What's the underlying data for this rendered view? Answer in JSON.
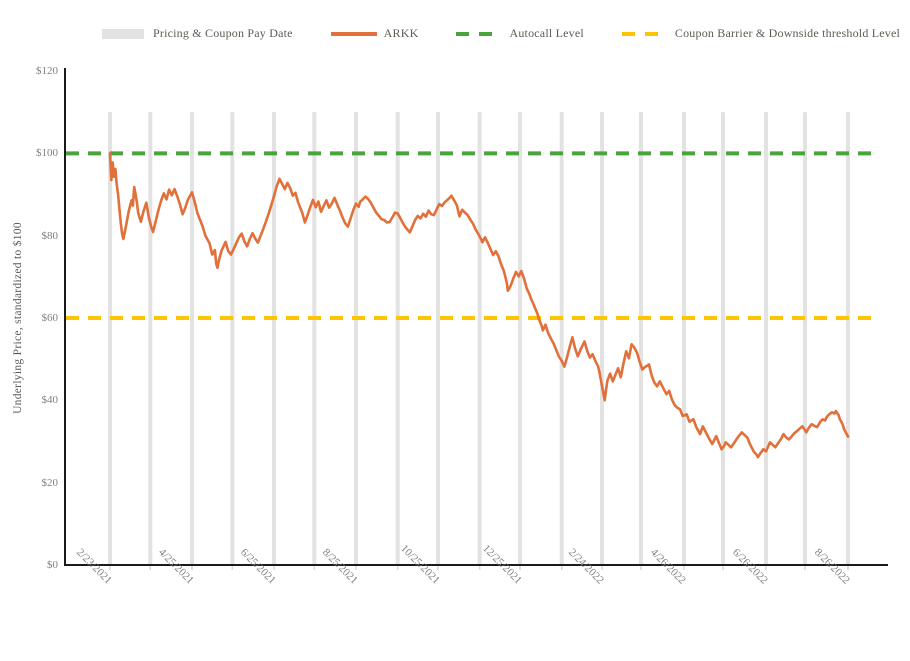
{
  "legend": {
    "items": [
      {
        "label": "Pricing & Coupon Pay Date",
        "swatch": "box",
        "color": "#e2e2e2"
      },
      {
        "label": "ARKK",
        "swatch": "line",
        "color": "#e2703a"
      },
      {
        "label": "Autocall Level",
        "swatch": "dash",
        "color": "#4aa43c"
      },
      {
        "label": "Coupon Barrier & Downside threshold Level",
        "swatch": "dash",
        "color": "#ffc400"
      }
    ]
  },
  "colors": {
    "arkk": "#e2703a",
    "autocall": "#4aa43c",
    "coupon_barrier": "#ffc400",
    "pay_date_bar": "#e2e2e2",
    "axis": "#1a1a1a",
    "tick_text": "#7f7f7a"
  },
  "chart_data": {
    "type": "line",
    "ylabel": "Underlying Price, standardized to $100",
    "ylim": [
      0,
      120
    ],
    "y_ticks": [
      0,
      20,
      40,
      60,
      80,
      100,
      120
    ],
    "y_tick_labels": [
      "$0",
      "$20",
      "$40",
      "$60",
      "$80",
      "$100",
      "$120"
    ],
    "x_domain_days": [
      0,
      549
    ],
    "x_tick_days": [
      0,
      61,
      122,
      183,
      244,
      305,
      366,
      427,
      488,
      549
    ],
    "x_tick_labels": [
      "2/23/2021",
      "4/25/2021",
      "6/25/2021",
      "8/25/2021",
      "10/25/2021",
      "12/25/2021",
      "2/24/2022",
      "4/26/2022",
      "6/26/2022",
      "8/26/2022"
    ],
    "grid": "off",
    "legend_position": "top",
    "autocall_level": 100,
    "coupon_barrier_level": 60,
    "pay_date_bar_top_value": 110,
    "pay_date_bars_days": [
      0,
      30,
      61,
      91,
      122,
      152,
      183,
      214,
      244,
      275,
      305,
      336,
      366,
      395,
      427,
      456,
      488,
      517,
      549
    ],
    "series": [
      {
        "name": "ARKK",
        "points": [
          [
            0,
            100
          ],
          [
            1,
            93.5
          ],
          [
            2,
            97.8
          ],
          [
            3,
            94.3
          ],
          [
            4,
            96.2
          ],
          [
            5,
            92.5
          ],
          [
            6,
            90
          ],
          [
            7,
            86.5
          ],
          [
            8,
            83
          ],
          [
            9,
            80.5
          ],
          [
            10,
            79.2
          ],
          [
            12,
            82.5
          ],
          [
            14,
            86
          ],
          [
            16,
            88.6
          ],
          [
            17,
            87.3
          ],
          [
            18,
            91.8
          ],
          [
            19,
            90.2
          ],
          [
            20,
            88
          ],
          [
            21,
            85.5
          ],
          [
            23,
            83.4
          ],
          [
            25,
            86
          ],
          [
            27,
            88
          ],
          [
            29,
            84.2
          ],
          [
            31,
            81.8
          ],
          [
            32,
            80.9
          ],
          [
            34,
            83.5
          ],
          [
            36,
            86.2
          ],
          [
            38,
            88.5
          ],
          [
            40,
            90.3
          ],
          [
            42,
            88.8
          ],
          [
            44,
            91.2
          ],
          [
            46,
            89.8
          ],
          [
            48,
            91.3
          ],
          [
            50,
            89.6
          ],
          [
            52,
            87.6
          ],
          [
            54,
            85.2
          ],
          [
            56,
            86.8
          ],
          [
            58,
            88.8
          ],
          [
            61,
            90.5
          ],
          [
            63,
            88.2
          ],
          [
            65,
            85.5
          ],
          [
            67,
            83.8
          ],
          [
            69,
            82.1
          ],
          [
            71,
            80
          ],
          [
            74,
            78.2
          ],
          [
            76,
            75.4
          ],
          [
            78,
            76.5
          ],
          [
            79,
            73.2
          ],
          [
            80,
            72.2
          ],
          [
            81,
            74
          ],
          [
            83,
            76.4
          ],
          [
            86,
            78.5
          ],
          [
            88,
            76.2
          ],
          [
            90,
            75.4
          ],
          [
            92,
            76.8
          ],
          [
            94,
            78.2
          ],
          [
            96,
            79.6
          ],
          [
            98,
            80.5
          ],
          [
            100,
            78.6
          ],
          [
            102,
            77.4
          ],
          [
            104,
            79.2
          ],
          [
            106,
            80.6
          ],
          [
            108,
            79.3
          ],
          [
            110,
            78.3
          ],
          [
            112,
            80
          ],
          [
            114,
            81.6
          ],
          [
            116,
            83.4
          ],
          [
            118,
            85.3
          ],
          [
            120,
            87.4
          ],
          [
            122,
            89.6
          ],
          [
            124,
            92
          ],
          [
            126,
            93.8
          ],
          [
            128,
            92.6
          ],
          [
            130,
            91.3
          ],
          [
            132,
            92.8
          ],
          [
            134,
            91.6
          ],
          [
            136,
            89.7
          ],
          [
            138,
            90.4
          ],
          [
            140,
            88
          ],
          [
            143,
            85.6
          ],
          [
            145,
            83.2
          ],
          [
            147,
            85
          ],
          [
            149,
            87
          ],
          [
            151,
            88.7
          ],
          [
            153,
            86.9
          ],
          [
            155,
            88.3
          ],
          [
            157,
            85.8
          ],
          [
            159,
            87.2
          ],
          [
            161,
            88.6
          ],
          [
            163,
            86.8
          ],
          [
            165,
            87.8
          ],
          [
            167,
            89.2
          ],
          [
            169,
            87.6
          ],
          [
            171,
            86.1
          ],
          [
            173,
            84.4
          ],
          [
            175,
            83
          ],
          [
            177,
            82.2
          ],
          [
            179,
            84.2
          ],
          [
            181,
            86.2
          ],
          [
            183,
            87.8
          ],
          [
            185,
            87
          ],
          [
            186,
            88.2
          ],
          [
            188,
            88.8
          ],
          [
            190,
            89.5
          ],
          [
            192,
            88.9
          ],
          [
            194,
            88
          ],
          [
            196,
            86.8
          ],
          [
            198,
            85.6
          ],
          [
            200,
            84.8
          ],
          [
            202,
            84
          ],
          [
            204,
            83.8
          ],
          [
            206,
            83.2
          ],
          [
            208,
            83.3
          ],
          [
            210,
            84.4
          ],
          [
            212,
            85.6
          ],
          [
            214,
            85.4
          ],
          [
            216,
            84.2
          ],
          [
            218,
            83
          ],
          [
            220,
            82
          ],
          [
            223,
            80.8
          ],
          [
            225,
            82.3
          ],
          [
            227,
            83.8
          ],
          [
            229,
            84.8
          ],
          [
            231,
            84.2
          ],
          [
            233,
            85.3
          ],
          [
            235,
            84.6
          ],
          [
            237,
            86.1
          ],
          [
            239,
            85.2
          ],
          [
            241,
            85
          ],
          [
            243,
            86.4
          ],
          [
            245,
            87.7
          ],
          [
            247,
            87.2
          ],
          [
            249,
            88.1
          ],
          [
            251,
            88.7
          ],
          [
            253,
            89.3
          ],
          [
            254,
            89.7
          ],
          [
            256,
            88.6
          ],
          [
            258,
            87.4
          ],
          [
            260,
            84.7
          ],
          [
            262,
            86.3
          ],
          [
            264,
            85.6
          ],
          [
            266,
            85
          ],
          [
            268,
            83.9
          ],
          [
            270,
            82.9
          ],
          [
            272,
            81.5
          ],
          [
            274,
            80.4
          ],
          [
            276,
            79.2
          ],
          [
            277,
            78.4
          ],
          [
            279,
            79.6
          ],
          [
            281,
            78.3
          ],
          [
            283,
            76.8
          ],
          [
            285,
            75.3
          ],
          [
            287,
            76.2
          ],
          [
            289,
            75
          ],
          [
            291,
            73
          ],
          [
            293,
            71.4
          ],
          [
            295,
            68.8
          ],
          [
            296,
            66.6
          ],
          [
            298,
            67.8
          ],
          [
            300,
            69.6
          ],
          [
            302,
            71.2
          ],
          [
            304,
            70.1
          ],
          [
            306,
            71.4
          ],
          [
            308,
            69.6
          ],
          [
            310,
            67.2
          ],
          [
            312,
            65.8
          ],
          [
            313,
            64.8
          ],
          [
            315,
            63.4
          ],
          [
            317,
            61.8
          ],
          [
            318,
            61
          ],
          [
            319,
            59.8
          ],
          [
            321,
            58.2
          ],
          [
            322,
            57
          ],
          [
            324,
            58.4
          ],
          [
            326,
            56.3
          ],
          [
            328,
            55
          ],
          [
            330,
            53.8
          ],
          [
            332,
            52.2
          ],
          [
            334,
            50.6
          ],
          [
            336,
            49.6
          ],
          [
            338,
            48.2
          ],
          [
            340,
            50.4
          ],
          [
            342,
            53
          ],
          [
            344,
            55.3
          ],
          [
            346,
            52.6
          ],
          [
            348,
            50.7
          ],
          [
            350,
            52.3
          ],
          [
            353,
            54.3
          ],
          [
            355,
            52
          ],
          [
            357,
            50.4
          ],
          [
            359,
            51.2
          ],
          [
            361,
            49.6
          ],
          [
            363,
            48.3
          ],
          [
            364,
            47
          ],
          [
            366,
            43.5
          ],
          [
            368,
            40
          ],
          [
            369,
            42.5
          ],
          [
            370,
            44.8
          ],
          [
            372,
            46.5
          ],
          [
            374,
            44.6
          ],
          [
            376,
            46.2
          ],
          [
            378,
            47.8
          ],
          [
            380,
            45.6
          ],
          [
            382,
            49
          ],
          [
            384,
            51.9
          ],
          [
            386,
            50.2
          ],
          [
            388,
            53.6
          ],
          [
            390,
            52.8
          ],
          [
            392,
            51.6
          ],
          [
            394,
            49.4
          ],
          [
            396,
            47.5
          ],
          [
            398,
            48.1
          ],
          [
            401,
            48.7
          ],
          [
            403,
            46
          ],
          [
            405,
            44.3
          ],
          [
            407,
            43.4
          ],
          [
            409,
            44.6
          ],
          [
            412,
            42.7
          ],
          [
            414,
            41.5
          ],
          [
            416,
            42.3
          ],
          [
            418,
            40.2
          ],
          [
            420,
            38.9
          ],
          [
            422,
            38.2
          ],
          [
            424,
            37.8
          ],
          [
            426,
            36.2
          ],
          [
            429,
            36.6
          ],
          [
            431,
            34.8
          ],
          [
            434,
            35.4
          ],
          [
            436,
            33.6
          ],
          [
            439,
            31.8
          ],
          [
            441,
            33.7
          ],
          [
            443,
            32.4
          ],
          [
            446,
            30.5
          ],
          [
            448,
            29.4
          ],
          [
            451,
            31.3
          ],
          [
            453,
            29.6
          ],
          [
            455,
            28.1
          ],
          [
            457,
            29
          ],
          [
            458,
            29.8
          ],
          [
            460,
            29.2
          ],
          [
            462,
            28.6
          ],
          [
            464,
            29.5
          ],
          [
            466,
            30.5
          ],
          [
            468,
            31.4
          ],
          [
            470,
            32.2
          ],
          [
            472,
            31.6
          ],
          [
            474,
            31
          ],
          [
            476,
            29.4
          ],
          [
            479,
            27.5
          ],
          [
            481,
            26.8
          ],
          [
            482,
            26.2
          ],
          [
            484,
            27.2
          ],
          [
            486,
            28.1
          ],
          [
            488,
            27.6
          ],
          [
            491,
            29.8
          ],
          [
            493,
            29.2
          ],
          [
            495,
            28.6
          ],
          [
            497,
            29.6
          ],
          [
            499,
            30.5
          ],
          [
            501,
            31.8
          ],
          [
            503,
            31
          ],
          [
            505,
            30.5
          ],
          [
            507,
            31.2
          ],
          [
            509,
            32
          ],
          [
            511,
            32.5
          ],
          [
            513,
            33.1
          ],
          [
            515,
            33.7
          ],
          [
            517,
            32.8
          ],
          [
            518,
            32.2
          ],
          [
            520,
            33.4
          ],
          [
            522,
            34.2
          ],
          [
            524,
            33.8
          ],
          [
            526,
            33.5
          ],
          [
            528,
            34.6
          ],
          [
            530,
            35.4
          ],
          [
            532,
            35.1
          ],
          [
            533,
            35.9
          ],
          [
            535,
            36.6
          ],
          [
            537,
            37.1
          ],
          [
            539,
            36.8
          ],
          [
            540,
            37.4
          ],
          [
            542,
            36.4
          ],
          [
            543,
            35.4
          ],
          [
            545,
            34.2
          ],
          [
            546,
            33
          ],
          [
            548,
            31.8
          ],
          [
            549,
            31.2
          ]
        ]
      }
    ]
  }
}
